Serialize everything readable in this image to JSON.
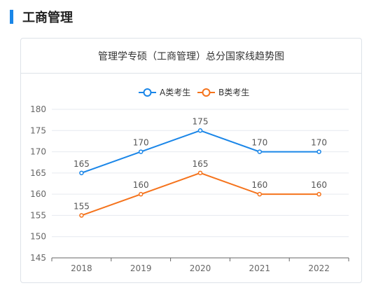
{
  "section": {
    "title": "工商管理"
  },
  "card": {
    "title": "管理学专硕（工商管理）总分国家线趋势图"
  },
  "colors": {
    "accent": "#1a86e8",
    "seriesA": "#1a86e8",
    "seriesB": "#f5731c",
    "grid": "#e6e9ef",
    "axis": "#666666"
  },
  "chart_data": {
    "type": "line",
    "title": "管理学专硕（工商管理）总分国家线趋势图",
    "categories": [
      "2018",
      "2019",
      "2020",
      "2021",
      "2022"
    ],
    "ylim": [
      145,
      180
    ],
    "yticks": [
      145,
      150,
      155,
      160,
      165,
      170,
      175,
      180
    ],
    "grid": true,
    "legend_position": "top-center",
    "series": [
      {
        "name": "A类考生",
        "values": [
          165,
          170,
          175,
          170,
          170
        ],
        "color": "#1a86e8"
      },
      {
        "name": "B类考生",
        "values": [
          155,
          160,
          165,
          160,
          160
        ],
        "color": "#f5731c"
      }
    ]
  }
}
